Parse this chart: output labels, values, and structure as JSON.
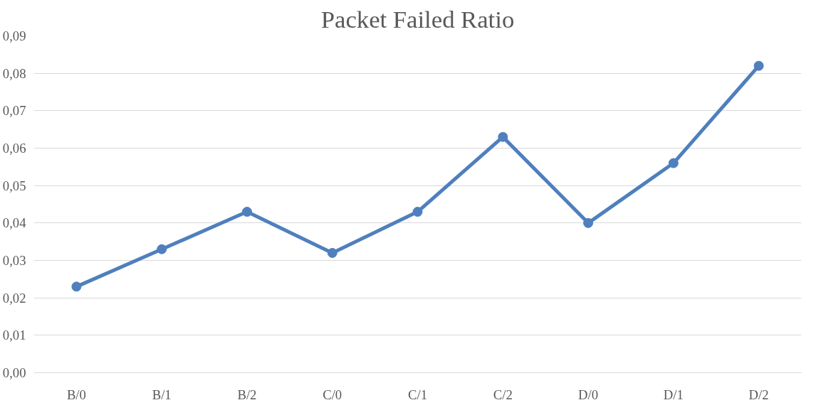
{
  "chart_data": {
    "type": "line",
    "title": "Packet Failed Ratio",
    "categories": [
      "B/0",
      "B/1",
      "B/2",
      "C/0",
      "C/1",
      "C/2",
      "D/0",
      "D/1",
      "D/2"
    ],
    "series": [
      {
        "color": "#4f7fbd",
        "values": [
          0.023,
          0.033,
          0.043,
          0.032,
          0.043,
          0.063,
          0.04,
          0.056,
          0.082
        ]
      }
    ],
    "ylim": [
      0,
      0.09
    ],
    "yticks": [
      {
        "value": 0,
        "label": "0,00"
      },
      {
        "value": 0.01,
        "label": "0,01"
      },
      {
        "value": 0.02,
        "label": "0,02"
      },
      {
        "value": 0.03,
        "label": "0,03"
      },
      {
        "value": 0.04,
        "label": "0,04"
      },
      {
        "value": 0.05,
        "label": "0,05"
      },
      {
        "value": 0.06,
        "label": "0,06"
      },
      {
        "value": 0.07,
        "label": "0,07"
      },
      {
        "value": 0.08,
        "label": "0,08"
      },
      {
        "value": 0.09,
        "label": "0,09"
      }
    ],
    "grid": "y",
    "marker": "circle",
    "line_style": "solid"
  }
}
